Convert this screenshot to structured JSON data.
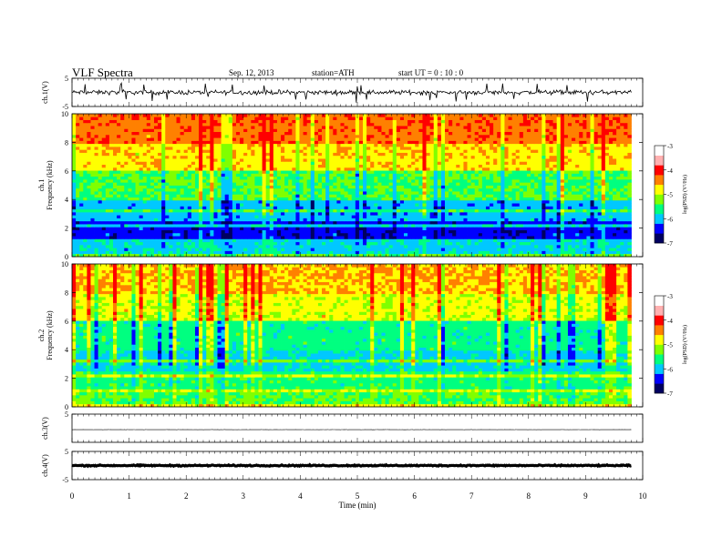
{
  "header": {
    "title": "VLF  Spectra",
    "date": "Sep. 12, 2013",
    "station": "station=ATH",
    "start": "start  UT  =    0  : 10 : 0"
  },
  "chart_data": [
    {
      "type": "line",
      "panel": "ch1-waveform",
      "ylabel": "ch.1(V)",
      "ylim": [
        -5,
        5
      ],
      "yticks": [
        "5",
        "-5"
      ],
      "xlim": [
        0,
        10
      ],
      "data_range_min": [
        0,
        9.8
      ],
      "approx_mean_V": 0,
      "approx_amplitude_V": 1.2
    },
    {
      "type": "heatmap",
      "panel": "ch1-spectrogram",
      "ylabel_line1": "ch.1",
      "ylabel_line2": "Frequency  (kHz)",
      "ylim": [
        0,
        10
      ],
      "yticks": [
        "0",
        "2",
        "4",
        "6",
        "8",
        "10"
      ],
      "xlim": [
        0,
        10
      ],
      "data_range_min": [
        0,
        9.8
      ],
      "color_scale": {
        "label": "log(PSD) (V²/Hz)",
        "range": [
          -7,
          -3
        ],
        "ticks": [
          "-3",
          "-4",
          "-5",
          "-6",
          "-7"
        ],
        "colors": [
          "#000060",
          "#0000ff",
          "#00c8ff",
          "#00ff80",
          "#80ff00",
          "#ffff00",
          "#ff8000",
          "#ff0000",
          "#ffb0b0",
          "#ffffff"
        ]
      },
      "band_profile": [
        {
          "freq_kHz": [
            8,
            10
          ],
          "logPSD": -3.6
        },
        {
          "freq_kHz": [
            6,
            8
          ],
          "logPSD": -4.1
        },
        {
          "freq_kHz": [
            4,
            6
          ],
          "logPSD": -5.0
        },
        {
          "freq_kHz": [
            2.5,
            4
          ],
          "logPSD": -5.8
        },
        {
          "freq_kHz": [
            1,
            2.5
          ],
          "logPSD": -6.3
        },
        {
          "freq_kHz": [
            0,
            1
          ],
          "logPSD": -5.6
        }
      ]
    },
    {
      "type": "heatmap",
      "panel": "ch2-spectrogram",
      "ylabel_line1": "ch.2",
      "ylabel_line2": "Frequency  (kHz)",
      "ylim": [
        0,
        10
      ],
      "yticks": [
        "0",
        "2",
        "4",
        "6",
        "8",
        "10"
      ],
      "xlim": [
        0,
        10
      ],
      "data_range_min": [
        0,
        9.8
      ],
      "color_scale": {
        "label": "log(PSD) (V²/Hz)",
        "range": [
          -7,
          -3
        ],
        "ticks": [
          "-3",
          "-4",
          "-5",
          "-6",
          "-7"
        ],
        "colors": [
          "#000060",
          "#0000ff",
          "#00c8ff",
          "#00ff80",
          "#80ff00",
          "#ffff00",
          "#ff8000",
          "#ff0000",
          "#ffb0b0",
          "#ffffff"
        ]
      },
      "band_profile": [
        {
          "freq_kHz": [
            8,
            10
          ],
          "logPSD": -4.0
        },
        {
          "freq_kHz": [
            6,
            8
          ],
          "logPSD": -4.4
        },
        {
          "freq_kHz": [
            4,
            6
          ],
          "logPSD": -5.3
        },
        {
          "freq_kHz": [
            2.5,
            4
          ],
          "logPSD": -5.6
        },
        {
          "freq_kHz": [
            1,
            2.5
          ],
          "logPSD": -5.2
        },
        {
          "freq_kHz": [
            0,
            1
          ],
          "logPSD": -5.0
        }
      ]
    },
    {
      "type": "line",
      "panel": "ch3-waveform",
      "ylabel": "ch.3(V)",
      "ylim": [
        -5,
        5
      ],
      "yticks": [
        "5"
      ],
      "xlim": [
        0,
        10
      ],
      "data_range_min": [
        0,
        9.8
      ],
      "approx_mean_V": -0.5,
      "approx_amplitude_V": 0.05
    },
    {
      "type": "line",
      "panel": "ch4-waveform",
      "ylabel": "ch.4(V)",
      "ylim": [
        -5,
        5
      ],
      "yticks": [
        "5",
        "-5"
      ],
      "xlim": [
        0,
        10
      ],
      "data_range_min": [
        0,
        9.8
      ],
      "approx_mean_V": 0,
      "approx_amplitude_V": 0.3
    }
  ],
  "xaxis": {
    "label": "Time  (min)",
    "ticks": [
      "0",
      "1",
      "2",
      "3",
      "4",
      "5",
      "6",
      "7",
      "8",
      "9",
      "10"
    ]
  }
}
